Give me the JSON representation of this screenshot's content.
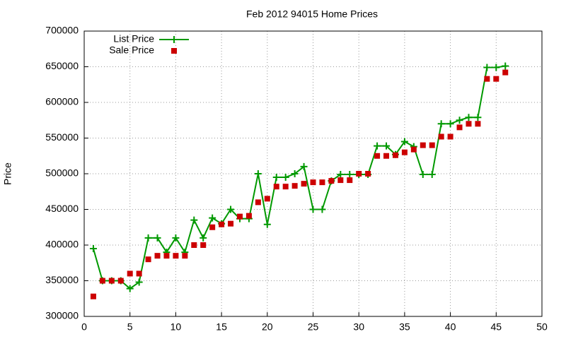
{
  "chart_data": {
    "type": "line",
    "title": "Feb 2012 94015 Home Prices",
    "y_label": "Price",
    "x": [
      1,
      2,
      3,
      4,
      5,
      6,
      7,
      8,
      9,
      10,
      11,
      12,
      13,
      14,
      15,
      16,
      17,
      18,
      19,
      20,
      21,
      22,
      23,
      24,
      25,
      26,
      27,
      28,
      29,
      30,
      31,
      32,
      33,
      34,
      35,
      36,
      37,
      38,
      39,
      40,
      41,
      42,
      43,
      44,
      45,
      46
    ],
    "series": [
      {
        "name": "List Price",
        "color": "#009900",
        "marker": "plus",
        "line": true,
        "values": [
          395000,
          350000,
          350000,
          350000,
          339000,
          348000,
          410000,
          410000,
          390000,
          410000,
          390000,
          435000,
          410000,
          438000,
          430000,
          450000,
          437000,
          437000,
          500000,
          429000,
          495000,
          495000,
          500000,
          510000,
          450000,
          450000,
          490000,
          499000,
          499000,
          499000,
          499000,
          539000,
          539000,
          527000,
          545000,
          538000,
          499000,
          499000,
          570000,
          570000,
          575000,
          579000,
          579000,
          649000,
          649000,
          651000
        ]
      },
      {
        "name": "Sale Price",
        "color": "#cc0000",
        "marker": "square",
        "line": false,
        "values": [
          328000,
          350000,
          350000,
          350000,
          360000,
          360000,
          380000,
          385000,
          385000,
          385000,
          385000,
          400000,
          400000,
          425000,
          429000,
          430000,
          440000,
          441000,
          460000,
          465000,
          482000,
          482000,
          483000,
          486000,
          488000,
          488000,
          490000,
          491000,
          491000,
          500000,
          500000,
          525000,
          525000,
          526000,
          530000,
          534000,
          540000,
          540000,
          552000,
          552000,
          565000,
          570000,
          570000,
          633000,
          633000,
          642000
        ]
      }
    ],
    "xlim": [
      0,
      50
    ],
    "xticks": [
      0,
      5,
      10,
      15,
      20,
      25,
      30,
      35,
      40,
      45,
      50
    ],
    "ylim": [
      300000,
      700000
    ],
    "yticks": [
      300000,
      350000,
      400000,
      450000,
      500000,
      550000,
      600000,
      650000,
      700000
    ],
    "grid": true,
    "legend": "top-left"
  }
}
